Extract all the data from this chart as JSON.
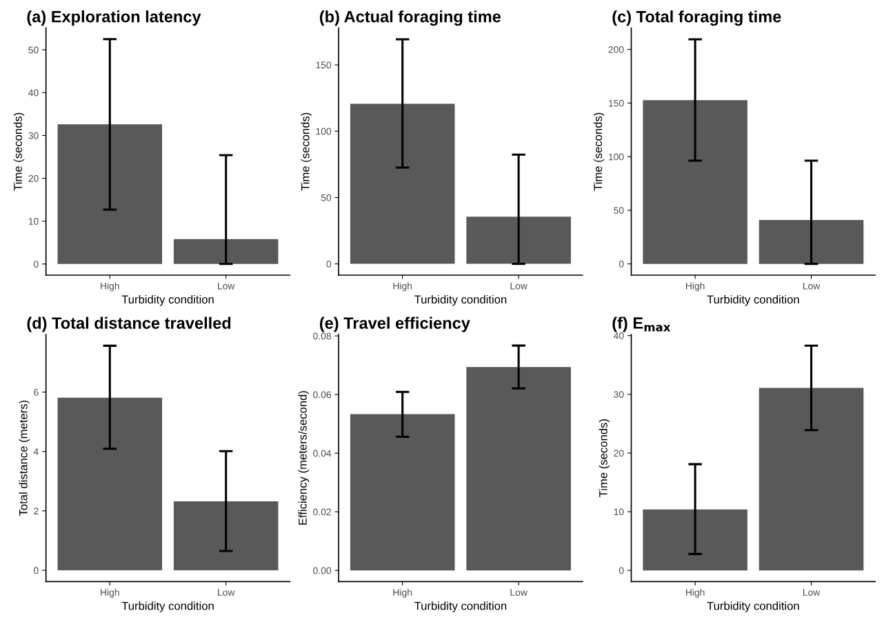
{
  "chart_data": [
    {
      "type": "bar",
      "title": "(a) Exploration latency",
      "xlabel": "Turbidity condition",
      "ylabel": "Time (seconds)",
      "categories": [
        "High",
        "Low"
      ],
      "values": [
        32.6,
        5.8
      ],
      "errors": [
        [
          12.7,
          52.5
        ],
        [
          0,
          25.4
        ]
      ],
      "color": "#595959",
      "ylim": [
        -2.6,
        55.1
      ],
      "yticks": [
        0,
        10,
        20,
        30,
        40,
        50
      ],
      "grid": false
    },
    {
      "type": "bar",
      "title": "(b) Actual foraging time",
      "xlabel": "Turbidity condition",
      "ylabel": "Time (seconds)",
      "categories": [
        "High",
        "Low"
      ],
      "values": [
        120.7,
        35.5
      ],
      "errors": [
        [
          72.6,
          169.3
        ],
        [
          0,
          82.3
        ]
      ],
      "color": "#595959",
      "ylim": [
        -8.5,
        177.8
      ],
      "yticks": [
        0,
        50,
        100,
        150
      ],
      "grid": false
    },
    {
      "type": "bar",
      "title": "(c) Total foraging time",
      "xlabel": "Turbidity condition",
      "ylabel": "Time (seconds)",
      "categories": [
        "High",
        "Low"
      ],
      "values": [
        152.7,
        40.9
      ],
      "errors": [
        [
          96.2,
          209.5
        ],
        [
          0,
          96.2
        ]
      ],
      "color": "#595959",
      "ylim": [
        -10.5,
        220
      ],
      "yticks": [
        0,
        50,
        100,
        150,
        200
      ],
      "grid": false
    },
    {
      "type": "bar",
      "title": "(d) Total distance travelled",
      "xlabel": "Turbidity condition",
      "ylabel": "Total distance (meters)",
      "categories": [
        "High",
        "Low"
      ],
      "values": [
        5.81,
        2.32
      ],
      "errors": [
        [
          4.09,
          7.56
        ],
        [
          0.65,
          4.01
        ]
      ],
      "color": "#595959",
      "ylim": [
        -0.38,
        7.94
      ],
      "yticks": [
        0,
        2,
        4,
        6
      ],
      "grid": false
    },
    {
      "type": "bar",
      "title": "(e) Travel efficiency",
      "xlabel": "Turbidity condition",
      "ylabel": "Efficiency (meters/second)",
      "categories": [
        "High",
        "Low"
      ],
      "values": [
        0.0533,
        0.0694
      ],
      "errors": [
        [
          0.0456,
          0.0609
        ],
        [
          0.0621,
          0.0767
        ]
      ],
      "color": "#595959",
      "ylim": [
        -0.0038,
        0.0805
      ],
      "yticks": [
        {
          "value": 0,
          "label": "0.00"
        },
        {
          "value": 0.02,
          "label": "0.02"
        },
        {
          "value": 0.04,
          "label": "0.04"
        },
        {
          "value": 0.06,
          "label": "0.06"
        },
        {
          "value": 0.08,
          "label": "0.08"
        }
      ],
      "grid": false
    },
    {
      "type": "bar",
      "title": "(f) E$_{max}$",
      "xlabel": "Turbidity condition",
      "ylabel": "Time (seconds)",
      "categories": [
        "High",
        "Low"
      ],
      "values": [
        10.4,
        31.1
      ],
      "errors": [
        [
          2.8,
          18.1
        ],
        [
          23.9,
          38.3
        ]
      ],
      "color": "#595959",
      "ylim": [
        -1.9,
        40.2
      ],
      "yticks": [
        0,
        10,
        20,
        30,
        40
      ],
      "grid": false
    }
  ]
}
